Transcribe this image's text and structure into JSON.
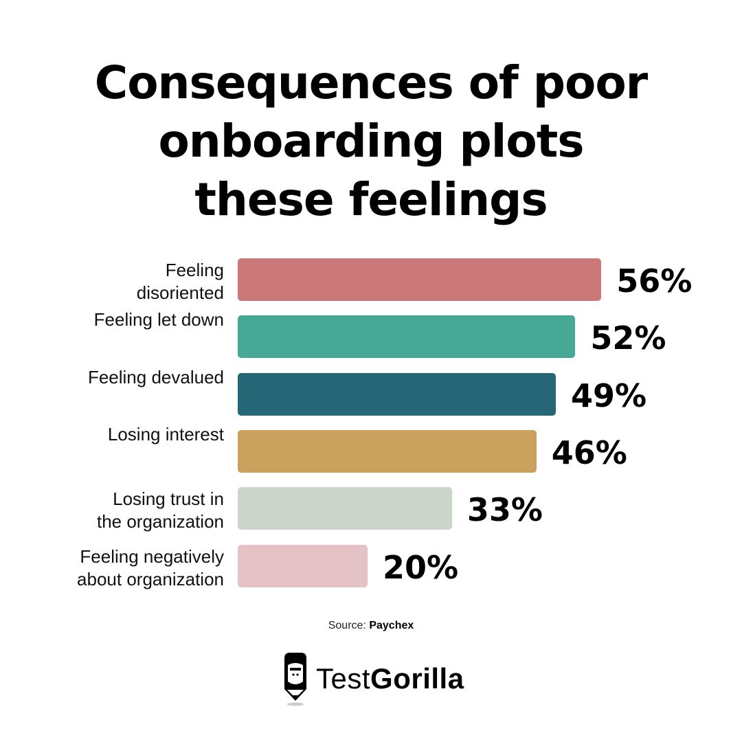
{
  "chart_data": {
    "type": "bar",
    "orientation": "horizontal",
    "title_lines": [
      "Consequences of poor",
      "onboarding plots",
      "these feelings"
    ],
    "categories": [
      [
        "Feeling",
        "disoriented"
      ],
      [
        "Feeling let down"
      ],
      [
        "Feeling devalued"
      ],
      [
        "Losing interest"
      ],
      [
        "Losing trust in",
        "the organization"
      ],
      [
        "Feeling negatively",
        "about organization"
      ]
    ],
    "values": [
      56,
      52,
      49,
      46,
      33,
      20
    ],
    "value_labels": [
      "56%",
      "52%",
      "49%",
      "46%",
      "33%",
      "20%"
    ],
    "colors": [
      "#cb7878",
      "#46a996",
      "#256677",
      "#cba15e",
      "#cbd5c9",
      "#e4c2c5"
    ],
    "xlabel": "",
    "ylabel": "",
    "xlim": [
      0,
      100
    ],
    "grid": false
  },
  "source": {
    "prefix": "Source:",
    "name": "Paychex"
  },
  "logo": {
    "text_light": "Test",
    "text_bold": "Gorilla"
  }
}
